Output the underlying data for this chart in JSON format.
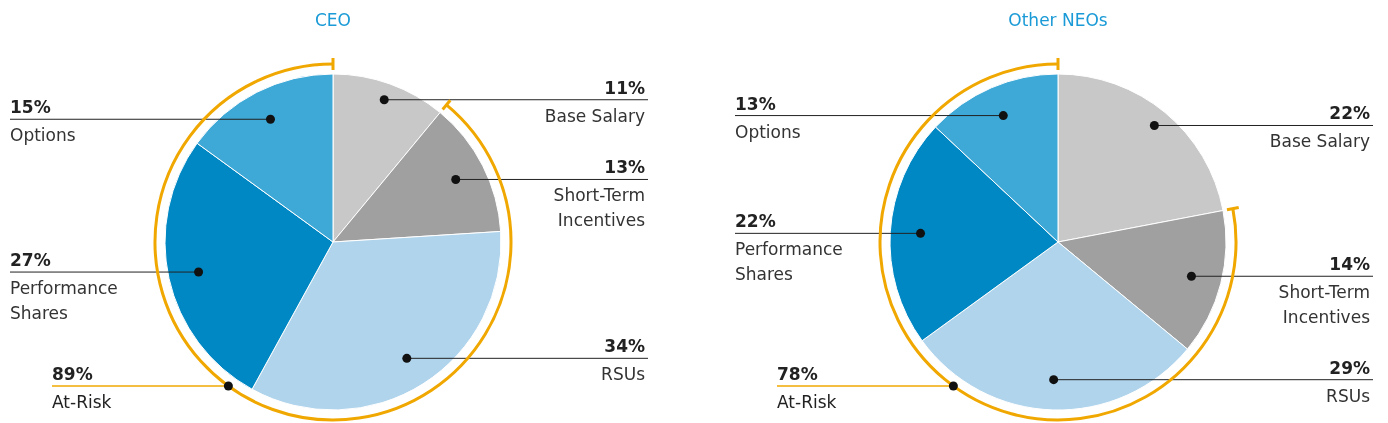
{
  "chart_data": [
    {
      "type": "pie",
      "title": "CEO",
      "categories": [
        "Base Salary",
        "Short-Term Incentives",
        "RSUs",
        "Performance Shares",
        "Options"
      ],
      "values": [
        11,
        13,
        34,
        27,
        15
      ],
      "colors": [
        "#c8c8c8",
        "#a0a0a0",
        "#b0d4ec",
        "#0088c4",
        "#3ea8d7"
      ],
      "value_labels": [
        "11%",
        "13%",
        "34%",
        "27%",
        "15%"
      ],
      "annotations": [
        "89%",
        "At-Risk"
      ]
    },
    {
      "type": "pie",
      "title": "Other NEOs",
      "categories": [
        "Base Salary",
        "Short-Term Incentives",
        "RSUs",
        "Performance Shares",
        "Options"
      ],
      "values": [
        22,
        14,
        29,
        22,
        13
      ],
      "colors": [
        "#c8c8c8",
        "#a0a0a0",
        "#b0d4ec",
        "#0088c4",
        "#3ea8d7"
      ],
      "value_labels": [
        "22%",
        "14%",
        "29%",
        "22%",
        "13%"
      ],
      "annotations": [
        "78%",
        "At-Risk"
      ]
    }
  ]
}
